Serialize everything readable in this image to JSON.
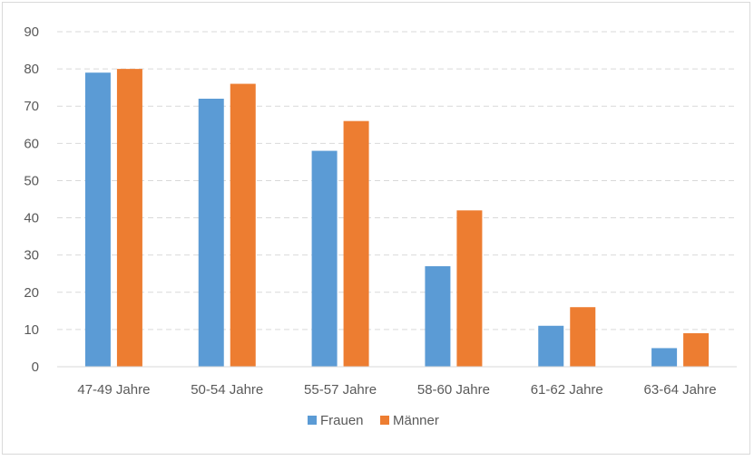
{
  "chart_data": {
    "type": "bar",
    "title": "",
    "xlabel": "",
    "ylabel": "",
    "categories": [
      "47-49 Jahre",
      "50-54 Jahre",
      "55-57 Jahre",
      "58-60 Jahre",
      "61-62 Jahre",
      "63-64 Jahre"
    ],
    "series": [
      {
        "name": "Frauen",
        "color": "#5b9bd5",
        "values": [
          79,
          72,
          58,
          27,
          11,
          5
        ]
      },
      {
        "name": "Männer",
        "color": "#ed7d31",
        "values": [
          80,
          76,
          66,
          42,
          16,
          9
        ]
      }
    ],
    "ylim": [
      0,
      90
    ],
    "yticks": [
      0,
      10,
      20,
      30,
      40,
      50,
      60,
      70,
      80,
      90
    ],
    "grid": true,
    "legend_position": "bottom"
  }
}
